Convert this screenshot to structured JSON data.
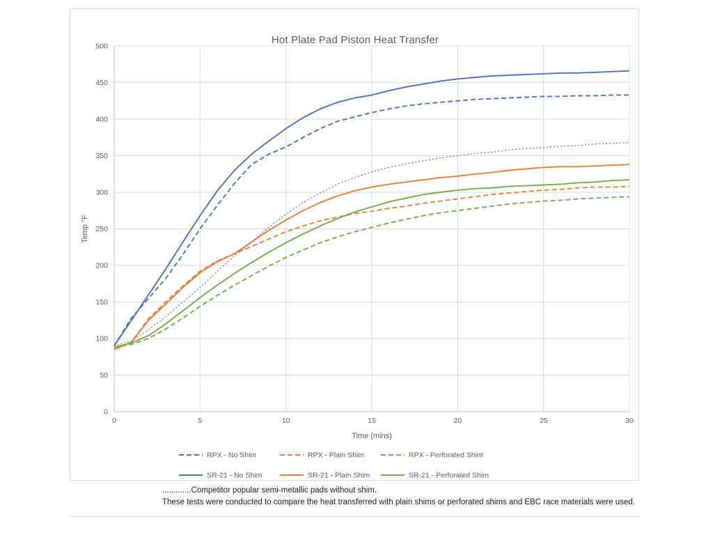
{
  "chart_data": {
    "type": "line",
    "title": "Hot Plate Pad Piston Heat Transfer",
    "xlabel": "Time (mins)",
    "ylabel": "Temp °F",
    "xlim": [
      0,
      30
    ],
    "ylim": [
      0,
      500
    ],
    "xticks": [
      0,
      5,
      10,
      15,
      20,
      25,
      30
    ],
    "yticks": [
      0,
      50,
      100,
      150,
      200,
      250,
      300,
      350,
      400,
      450,
      500
    ],
    "grid": true,
    "legend_position": "bottom",
    "x": [
      0,
      1,
      2,
      3,
      4,
      5,
      6,
      7,
      8,
      9,
      10,
      11,
      12,
      13,
      14,
      15,
      16,
      17,
      18,
      19,
      20,
      21,
      22,
      23,
      24,
      25,
      26,
      27,
      28,
      29,
      30
    ],
    "series": [
      {
        "name": "RPX - No Shim",
        "color": "#4472C4",
        "style": "dashed",
        "in_legend": true,
        "values": [
          90,
          128,
          155,
          182,
          215,
          250,
          282,
          312,
          338,
          352,
          362,
          375,
          387,
          397,
          403,
          409,
          414,
          418,
          421,
          423,
          425,
          427,
          428,
          429,
          430,
          431,
          431,
          432,
          432,
          433,
          433
        ]
      },
      {
        "name": "RPX - Plain Shim",
        "color": "#ED7D31",
        "style": "dashed",
        "in_legend": true,
        "values": [
          85,
          95,
          127,
          150,
          172,
          192,
          206,
          216,
          226,
          236,
          246,
          254,
          261,
          266,
          271,
          274,
          278,
          281,
          285,
          288,
          291,
          294,
          297,
          299,
          301,
          303,
          304,
          306,
          307,
          307,
          308
        ]
      },
      {
        "name": "RPX - Perforated Shim",
        "color": "#70AD47",
        "style": "dashed",
        "in_legend": true,
        "values": [
          88,
          92,
          100,
          113,
          128,
          144,
          159,
          173,
          186,
          199,
          211,
          221,
          231,
          239,
          246,
          252,
          258,
          263,
          268,
          272,
          275,
          278,
          281,
          284,
          286,
          288,
          289,
          291,
          292,
          293,
          294
        ]
      },
      {
        "name": "SR-21 - No Shim",
        "color": "#4472C4",
        "style": "solid",
        "in_legend": true,
        "values": [
          90,
          125,
          160,
          195,
          232,
          268,
          302,
          330,
          352,
          370,
          387,
          402,
          414,
          423,
          429,
          433,
          439,
          444,
          448,
          452,
          455,
          457,
          459,
          460,
          461,
          462,
          463,
          463,
          464,
          465,
          466
        ]
      },
      {
        "name": "SR-21 - Plain Shim",
        "color": "#ED7D31",
        "style": "solid",
        "in_legend": true,
        "values": [
          85,
          95,
          125,
          147,
          170,
          190,
          205,
          216,
          232,
          248,
          262,
          275,
          286,
          295,
          302,
          307,
          311,
          314,
          317,
          320,
          322,
          325,
          327,
          330,
          332,
          334,
          335,
          335,
          336,
          337,
          338
        ]
      },
      {
        "name": "SR-21 - Perforated Shim",
        "color": "#70AD47",
        "style": "solid",
        "in_legend": true,
        "values": [
          88,
          94,
          104,
          120,
          138,
          156,
          173,
          189,
          204,
          218,
          231,
          243,
          254,
          264,
          273,
          280,
          287,
          292,
          297,
          300,
          303,
          305,
          306,
          308,
          309,
          310,
          311,
          313,
          314,
          316,
          317
        ]
      },
      {
        "name": "Competitor popular semi-metallic pads without shim",
        "color": "#7F7F7F",
        "style": "dotted",
        "in_legend": false,
        "values": [
          90,
          97,
          112,
          130,
          150,
          170,
          192,
          213,
          232,
          252,
          270,
          286,
          299,
          311,
          320,
          328,
          334,
          339,
          343,
          347,
          350,
          353,
          355,
          358,
          360,
          361,
          363,
          364,
          366,
          367,
          368
        ]
      }
    ],
    "legend_rows": [
      [
        0,
        1,
        2
      ],
      [
        3,
        4,
        5
      ]
    ],
    "notes": [
      ".............Competitor popular semi-metallic pads without shim.",
      "These tests were conducted to  compare the heat transferred with plain shims or perforated shims and EBC race materials were used."
    ]
  },
  "colors": {
    "axis_text": "#595959",
    "gridline": "#d9d9d9",
    "axis_line": "#bfbfbf",
    "title_text": "#595959"
  }
}
